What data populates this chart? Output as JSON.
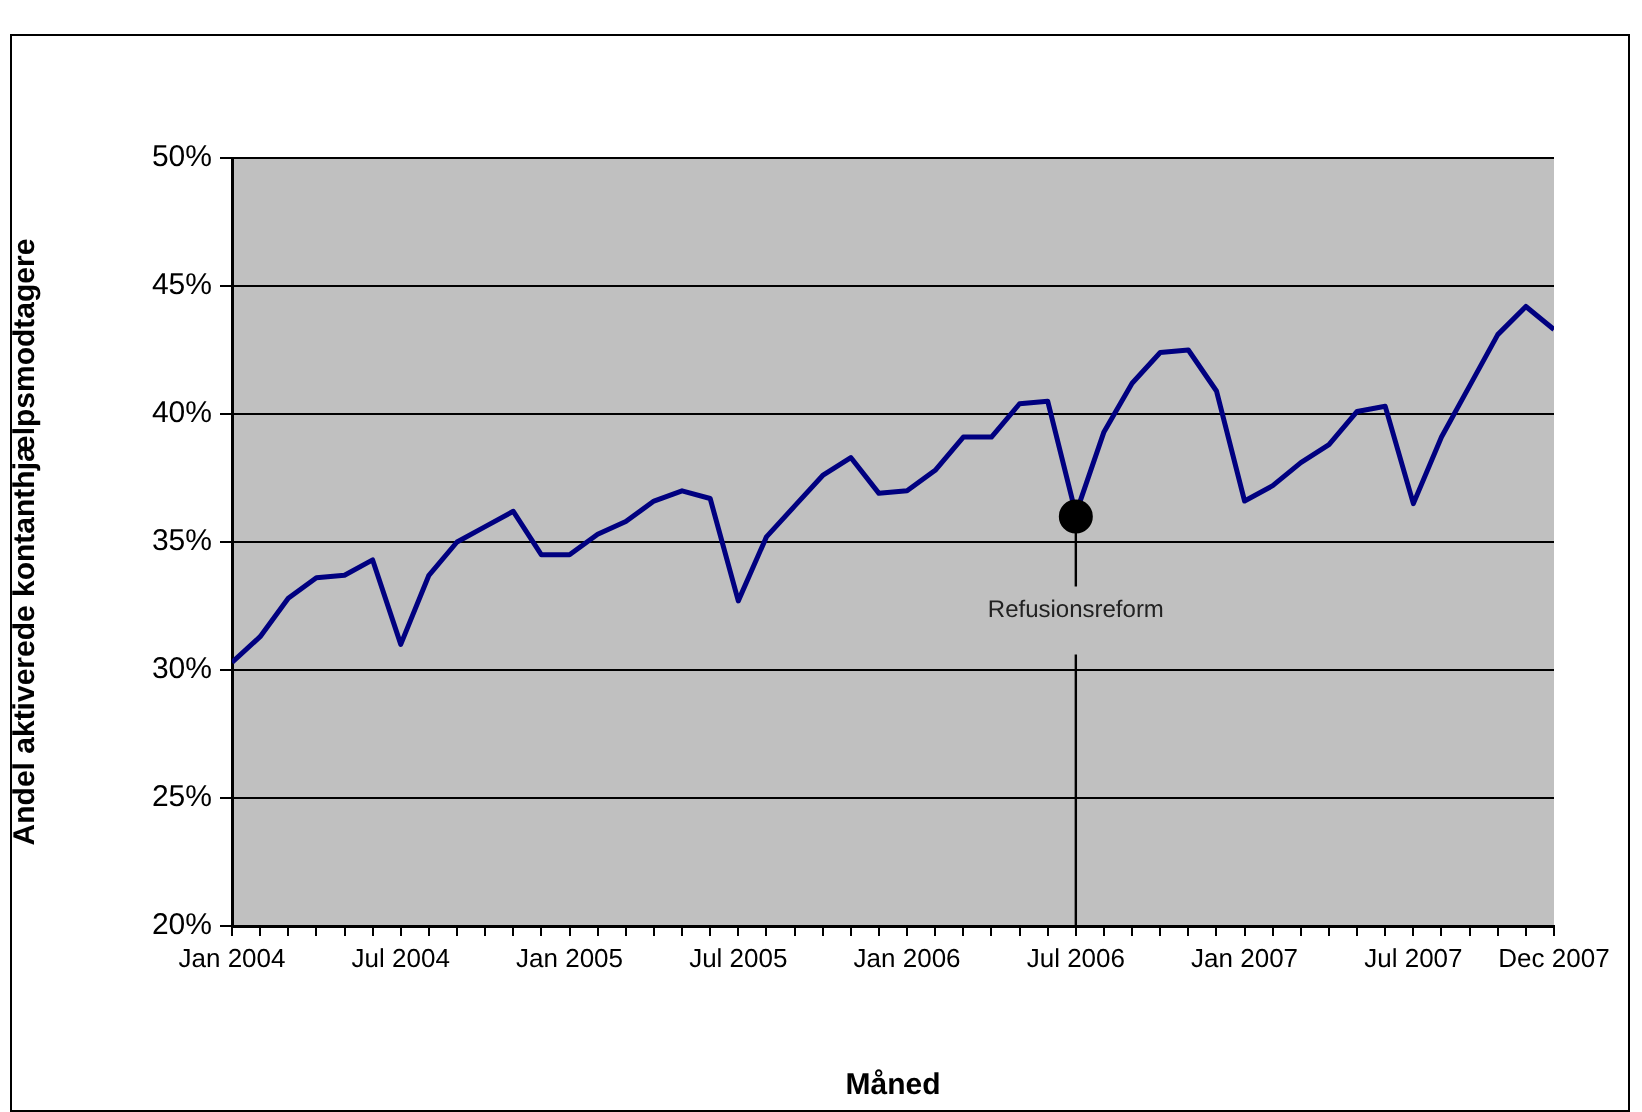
{
  "chart_data": {
    "type": "line",
    "xlabel": "Måned",
    "ylabel": "Andel aktiverede kontanthjælpsmodtagere",
    "x": [
      "2004-01",
      "2004-02",
      "2004-03",
      "2004-04",
      "2004-05",
      "2004-06",
      "2004-07",
      "2004-08",
      "2004-09",
      "2004-10",
      "2004-11",
      "2004-12",
      "2005-01",
      "2005-02",
      "2005-03",
      "2005-04",
      "2005-05",
      "2005-06",
      "2005-07",
      "2005-08",
      "2005-09",
      "2005-10",
      "2005-11",
      "2005-12",
      "2006-01",
      "2006-02",
      "2006-03",
      "2006-04",
      "2006-05",
      "2006-06",
      "2006-07",
      "2006-08",
      "2006-09",
      "2006-10",
      "2006-11",
      "2006-12",
      "2007-01",
      "2007-02",
      "2007-03",
      "2007-04",
      "2007-05",
      "2007-06",
      "2007-07",
      "2007-08",
      "2007-09",
      "2007-10",
      "2007-11",
      "2007-12"
    ],
    "series": [
      {
        "type": "line",
        "color": "#000080",
        "marker": "none",
        "line_style": "solid",
        "values": [
          30.3,
          31.3,
          32.8,
          33.6,
          33.7,
          34.3,
          31.0,
          33.7,
          35.0,
          35.6,
          36.2,
          34.5,
          34.5,
          35.3,
          35.8,
          36.6,
          37.0,
          36.7,
          32.7,
          35.2,
          36.4,
          37.6,
          38.3,
          36.9,
          37.0,
          37.8,
          39.1,
          39.1,
          40.4,
          40.5,
          36.1,
          39.3,
          41.2,
          42.4,
          42.5,
          40.9,
          36.6,
          37.2,
          38.1,
          38.8,
          40.1,
          40.3,
          36.5,
          39.1,
          41.1,
          43.1,
          44.2,
          43.3
        ]
      },
      {
        "type": "scatter",
        "color": "#000000",
        "marker": "circle",
        "x": [
          "2006-07"
        ],
        "values": [
          36.0
        ]
      }
    ],
    "ylim": [
      20,
      50
    ],
    "yticks": [
      {
        "value": 20,
        "label": "20%"
      },
      {
        "value": 25,
        "label": "25%"
      },
      {
        "value": 30,
        "label": "30%"
      },
      {
        "value": 35,
        "label": "35%"
      },
      {
        "value": 40,
        "label": "40%"
      },
      {
        "value": 45,
        "label": "45%"
      },
      {
        "value": 50,
        "label": "50%"
      }
    ],
    "xlim": [
      "2004-01",
      "2007-12"
    ],
    "xticks": [
      {
        "value": "2004-01",
        "label": "Jan 2004"
      },
      {
        "value": "2004-02",
        "label": null
      },
      {
        "value": "2004-03",
        "label": null
      },
      {
        "value": "2004-04",
        "label": null
      },
      {
        "value": "2004-05",
        "label": null
      },
      {
        "value": "2004-06",
        "label": null
      },
      {
        "value": "2004-07",
        "label": "Jul 2004"
      },
      {
        "value": "2004-08",
        "label": null
      },
      {
        "value": "2004-09",
        "label": null
      },
      {
        "value": "2004-10",
        "label": null
      },
      {
        "value": "2004-11",
        "label": null
      },
      {
        "value": "2004-12",
        "label": null
      },
      {
        "value": "2005-01",
        "label": "Jan 2005"
      },
      {
        "value": "2005-02",
        "label": null
      },
      {
        "value": "2005-03",
        "label": null
      },
      {
        "value": "2005-04",
        "label": null
      },
      {
        "value": "2005-05",
        "label": null
      },
      {
        "value": "2005-06",
        "label": null
      },
      {
        "value": "2005-07",
        "label": "Jul 2005"
      },
      {
        "value": "2005-08",
        "label": null
      },
      {
        "value": "2005-09",
        "label": null
      },
      {
        "value": "2005-10",
        "label": null
      },
      {
        "value": "2005-11",
        "label": null
      },
      {
        "value": "2005-12",
        "label": null
      },
      {
        "value": "2006-01",
        "label": "Jan 2006"
      },
      {
        "value": "2006-02",
        "label": null
      },
      {
        "value": "2006-03",
        "label": null
      },
      {
        "value": "2006-04",
        "label": null
      },
      {
        "value": "2006-05",
        "label": null
      },
      {
        "value": "2006-06",
        "label": null
      },
      {
        "value": "2006-07",
        "label": "Jul 2006"
      },
      {
        "value": "2006-08",
        "label": null
      },
      {
        "value": "2006-09",
        "label": null
      },
      {
        "value": "2006-10",
        "label": null
      },
      {
        "value": "2006-11",
        "label": null
      },
      {
        "value": "2006-12",
        "label": null
      },
      {
        "value": "2007-01",
        "label": "Jan 2007"
      },
      {
        "value": "2007-02",
        "label": null
      },
      {
        "value": "2007-03",
        "label": null
      },
      {
        "value": "2007-04",
        "label": null
      },
      {
        "value": "2007-05",
        "label": null
      },
      {
        "value": "2007-06",
        "label": null
      },
      {
        "value": "2007-07",
        "label": "Jul 2007"
      },
      {
        "value": "2007-08",
        "label": null
      },
      {
        "value": "2007-09",
        "label": null
      },
      {
        "value": "2007-10",
        "label": null
      },
      {
        "value": "2007-11",
        "label": null
      },
      {
        "value": "2007-12",
        "label": "Dec 2007"
      }
    ],
    "ref_lines": [
      {
        "axis": "x",
        "value": "2006-07",
        "label": "Refusionsreform",
        "color": "#000000"
      }
    ],
    "grid": "y",
    "legend": false
  }
}
